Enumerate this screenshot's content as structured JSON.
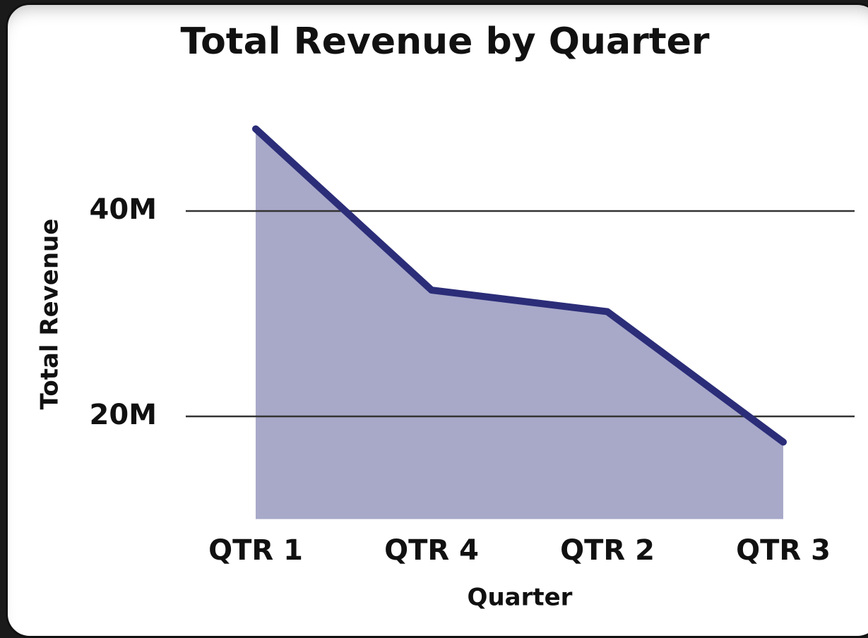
{
  "chart_data": {
    "type": "area",
    "title": "Total Revenue by Quarter",
    "x_label": "Quarter",
    "y_label": "Total Revenue",
    "categories": [
      "QTR 1",
      "QTR 4",
      "QTR 2",
      "QTR 3"
    ],
    "values": [
      48000000,
      32300000,
      30200000,
      17500000
    ],
    "color": "#2b2d78",
    "fill_color": "#a8a9c9",
    "ylim": [
      10000000,
      50000000
    ],
    "yticks": [
      {
        "value": 20000000,
        "label": "20M"
      },
      {
        "value": 40000000,
        "label": "40M"
      }
    ],
    "grid": true
  }
}
